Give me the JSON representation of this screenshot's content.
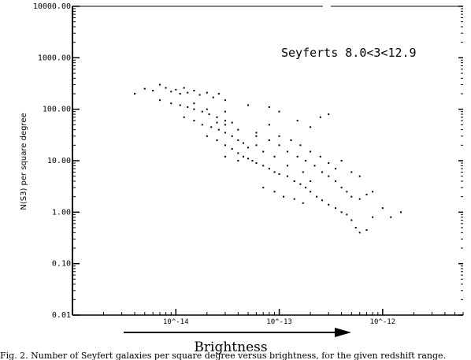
{
  "chart_data": {
    "type": "scatter",
    "title": "",
    "annotation": "Seyferts 8.0<3<12.9",
    "xlabel": "Brightness",
    "ylabel": "N(S3) per square degree",
    "x_scale": "log",
    "y_scale": "log",
    "xlim": [
      1e-15,
      6e-12
    ],
    "ylim": [
      0.01,
      10000
    ],
    "x_tick_labels": [
      "10^-14",
      "10^-13",
      "10^-12"
    ],
    "x_tick_values": [
      1e-14,
      1e-13,
      1e-12
    ],
    "y_tick_labels": [
      "10000.00",
      "1000.00",
      "100.00",
      "10.00",
      "1.00",
      "0.10",
      "0.01"
    ],
    "y_tick_values": [
      10000,
      1000,
      100,
      10,
      1,
      0.1,
      0.01
    ],
    "grid": false,
    "legend": "none",
    "points": [
      [
        4e-15,
        200
      ],
      [
        5e-15,
        250
      ],
      [
        6e-15,
        230
      ],
      [
        7e-15,
        300
      ],
      [
        8e-15,
        260
      ],
      [
        9e-15,
        220
      ],
      [
        1e-14,
        240
      ],
      [
        1.1e-14,
        200
      ],
      [
        1.2e-14,
        260
      ],
      [
        1.3e-14,
        210
      ],
      [
        1.5e-14,
        230
      ],
      [
        1.7e-14,
        190
      ],
      [
        2e-14,
        210
      ],
      [
        2.3e-14,
        170
      ],
      [
        2.6e-14,
        200
      ],
      [
        3e-14,
        150
      ],
      [
        7e-15,
        150
      ],
      [
        9e-15,
        130
      ],
      [
        1.1e-14,
        120
      ],
      [
        1.3e-14,
        110
      ],
      [
        1.5e-14,
        100
      ],
      [
        1.8e-14,
        90
      ],
      [
        2.1e-14,
        80
      ],
      [
        2.5e-14,
        70
      ],
      [
        3e-14,
        60
      ],
      [
        3.5e-14,
        55
      ],
      [
        1.2e-14,
        70
      ],
      [
        1.5e-14,
        60
      ],
      [
        1.8e-14,
        50
      ],
      [
        2.2e-14,
        45
      ],
      [
        2.6e-14,
        40
      ],
      [
        3e-14,
        35
      ],
      [
        3.5e-14,
        30
      ],
      [
        4e-14,
        25
      ],
      [
        4.5e-14,
        22
      ],
      [
        5e-14,
        18
      ],
      [
        2e-14,
        30
      ],
      [
        2.5e-14,
        25
      ],
      [
        3e-14,
        20
      ],
      [
        3.5e-14,
        17
      ],
      [
        4e-14,
        14
      ],
      [
        4.5e-14,
        12
      ],
      [
        5e-14,
        11
      ],
      [
        5.5e-14,
        10
      ],
      [
        6e-14,
        9
      ],
      [
        7e-14,
        8
      ],
      [
        8e-14,
        7
      ],
      [
        9e-14,
        6
      ],
      [
        1e-13,
        5.5
      ],
      [
        1.2e-13,
        5
      ],
      [
        1.4e-13,
        4
      ],
      [
        1.6e-13,
        3.5
      ],
      [
        1.8e-13,
        3
      ],
      [
        2e-13,
        2.5
      ],
      [
        2.3e-13,
        2
      ],
      [
        2.6e-13,
        1.7
      ],
      [
        3e-13,
        1.4
      ],
      [
        3.5e-13,
        1.2
      ],
      [
        4e-13,
        1
      ],
      [
        4.5e-13,
        0.9
      ],
      [
        5e-13,
        0.7
      ],
      [
        5.5e-13,
        0.5
      ],
      [
        6e-13,
        0.4
      ],
      [
        7e-13,
        0.45
      ],
      [
        8e-13,
        0.8
      ],
      [
        1e-12,
        1.2
      ],
      [
        1.2e-12,
        0.8
      ],
      [
        1.5e-12,
        1
      ],
      [
        6e-14,
        30
      ],
      [
        8e-14,
        25
      ],
      [
        1e-13,
        20
      ],
      [
        1.2e-13,
        15
      ],
      [
        1.5e-13,
        12
      ],
      [
        1.8e-13,
        10
      ],
      [
        2.2e-13,
        8
      ],
      [
        2.6e-13,
        6
      ],
      [
        3e-13,
        5
      ],
      [
        3.5e-13,
        4
      ],
      [
        4e-13,
        3
      ],
      [
        4.5e-13,
        2.5
      ],
      [
        5e-13,
        2
      ],
      [
        6e-13,
        1.8
      ],
      [
        7e-13,
        2.2
      ],
      [
        8e-13,
        2.5
      ],
      [
        4e-14,
        40
      ],
      [
        6e-14,
        35
      ],
      [
        8e-14,
        50
      ],
      [
        1e-13,
        30
      ],
      [
        1.3e-13,
        25
      ],
      [
        1.6e-13,
        20
      ],
      [
        2e-13,
        15
      ],
      [
        2.5e-13,
        12
      ],
      [
        3e-13,
        9
      ],
      [
        3.5e-13,
        7
      ],
      [
        4e-13,
        10
      ],
      [
        5e-13,
        6
      ],
      [
        6e-13,
        5
      ],
      [
        2.5e-13,
        70
      ],
      [
        3e-13,
        80
      ],
      [
        2e-13,
        45
      ],
      [
        1.5e-13,
        60
      ],
      [
        1e-13,
        90
      ],
      [
        8e-14,
        110
      ],
      [
        5e-14,
        120
      ],
      [
        3e-14,
        90
      ],
      [
        2e-14,
        100
      ],
      [
        1.5e-14,
        130
      ],
      [
        2e-13,
        4
      ],
      [
        1.7e-13,
        6
      ],
      [
        1.2e-13,
        8
      ],
      [
        9e-14,
        12
      ],
      [
        7e-14,
        15
      ],
      [
        6e-14,
        20
      ],
      [
        3e-14,
        50
      ],
      [
        2.5e-14,
        55
      ],
      [
        4e-14,
        10
      ],
      [
        3e-14,
        12
      ],
      [
        7e-14,
        3
      ],
      [
        9e-14,
        2.5
      ],
      [
        1.1e-13,
        2
      ],
      [
        1.4e-13,
        1.8
      ],
      [
        1.7e-13,
        1.5
      ]
    ]
  },
  "caption": "Fig. 2. Number of Seyfert galaxies per square degree versus brightness, for the given redshift range."
}
